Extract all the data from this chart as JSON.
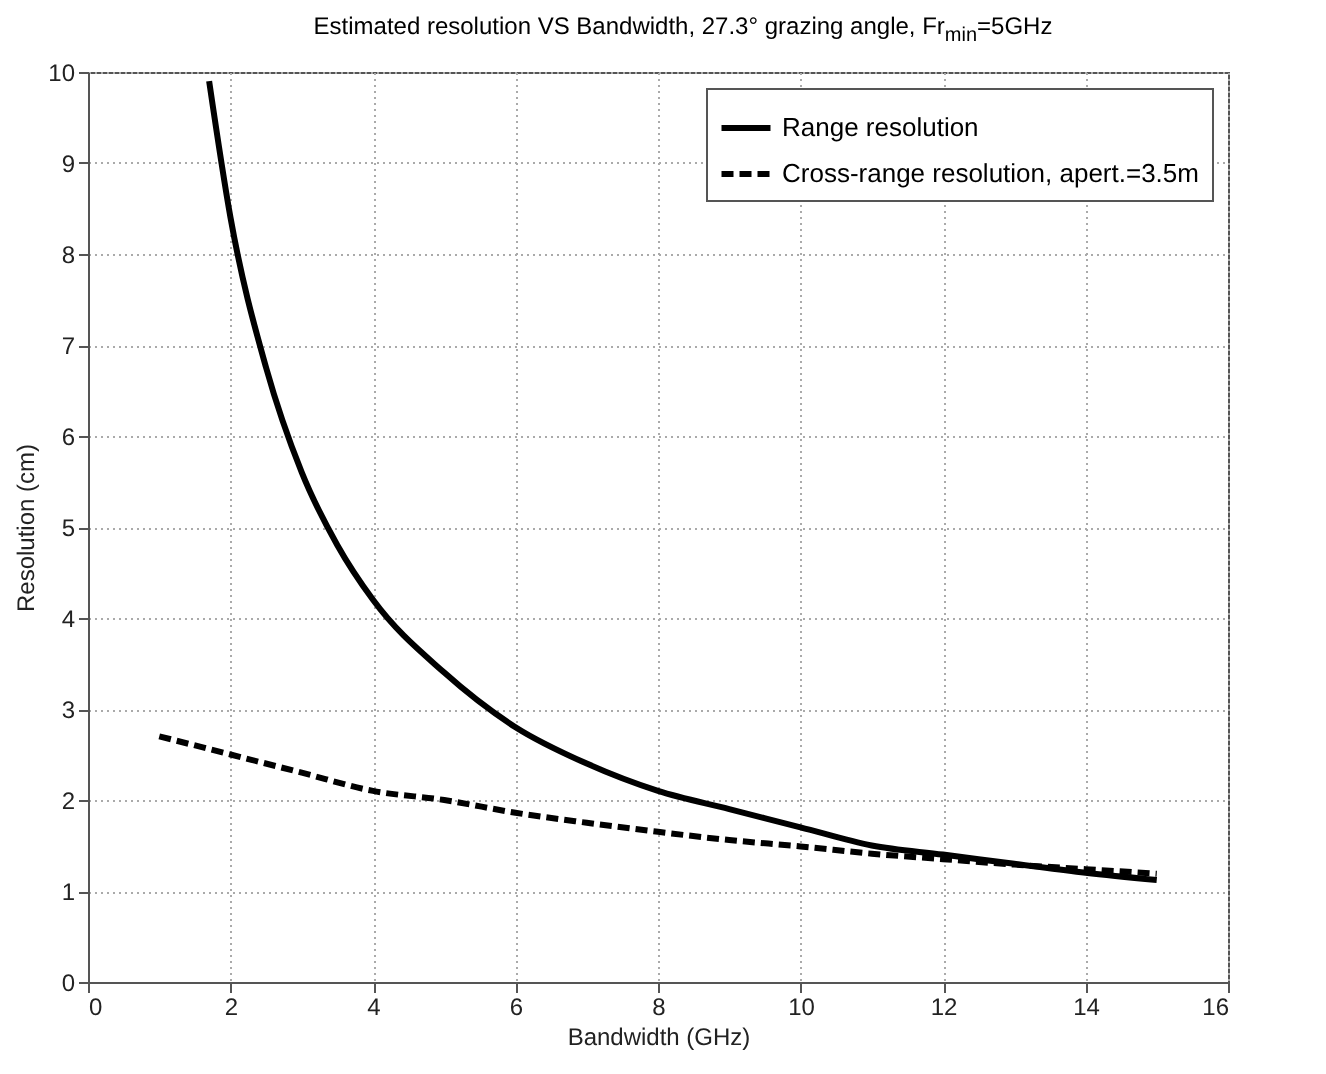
{
  "chart_data": {
    "type": "line",
    "title": "Estimated resolution VS Bandwidth, 27.3° grazing angle, Fr$_{min}$=5GHz",
    "xlabel": "Bandwidth (GHz)",
    "ylabel": "Resolution (cm)",
    "xlim": [
      0,
      16
    ],
    "xticks": [
      0,
      2,
      4,
      6,
      8,
      10,
      12,
      14,
      16
    ],
    "ylim": [
      0,
      10
    ],
    "yticks": [
      0,
      1,
      2,
      3,
      4,
      5,
      6,
      7,
      8,
      9,
      10
    ],
    "grid": true,
    "legend": "top right",
    "series": [
      {
        "name": "Range resolution",
        "color": "#000000",
        "line_style": "solid",
        "x": [
          1.7,
          2,
          2.5,
          3,
          3.5,
          4,
          5,
          6,
          7,
          8,
          9,
          10,
          11,
          12,
          13,
          14,
          15
        ],
        "values": [
          9.9,
          8.4,
          6.75,
          5.6,
          4.8,
          4.2,
          3.4,
          2.8,
          2.4,
          2.1,
          1.9,
          1.7,
          1.5,
          1.4,
          1.3,
          1.2,
          1.12
        ]
      },
      {
        "name": "Cross-range resolution, apert.=3.5m",
        "color": "#000000",
        "line_style": "dashed",
        "x": [
          1,
          2,
          3,
          4,
          5,
          6,
          7,
          8,
          9,
          10,
          11,
          12,
          13,
          14,
          15
        ],
        "values": [
          2.7,
          2.5,
          2.3,
          2.1,
          2.0,
          1.86,
          1.75,
          1.65,
          1.56,
          1.49,
          1.41,
          1.35,
          1.29,
          1.24,
          1.19
        ]
      }
    ]
  }
}
